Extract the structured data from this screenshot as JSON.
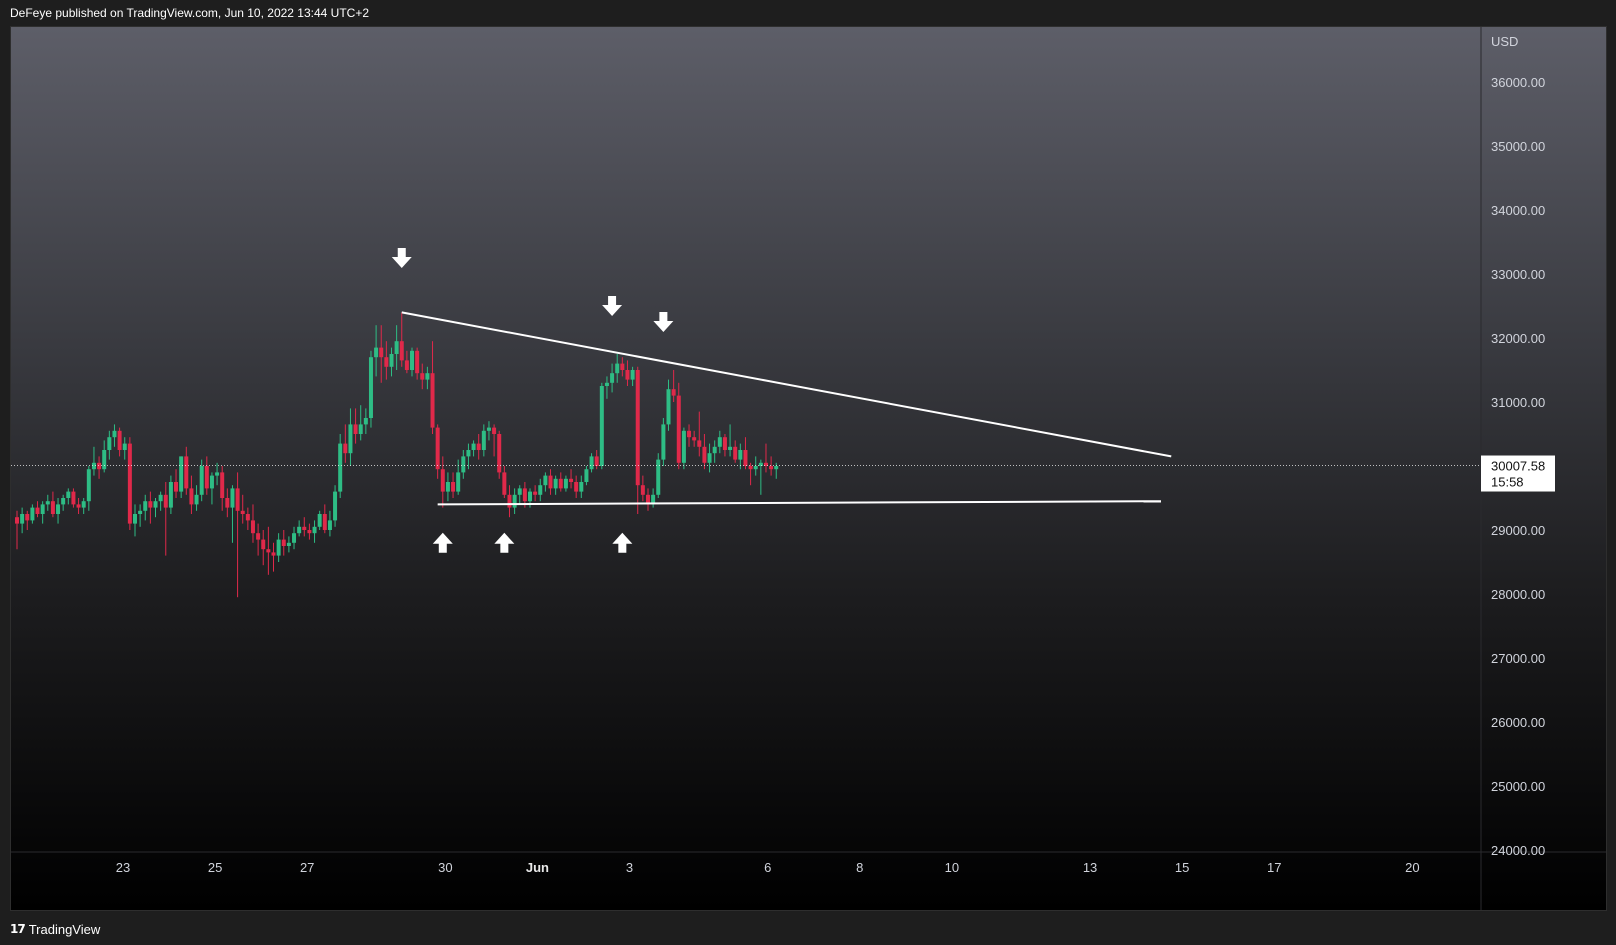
{
  "header": {
    "text": "DeFeye published on TradingView.com, Jun 10, 2022 13:44 UTC+2"
  },
  "footer": {
    "logo_glyph": "17",
    "brand": "TradingView"
  },
  "colors": {
    "up": "#26a69a",
    "down": "#ef5350",
    "up_bright": "#2ebd85",
    "down_bright": "#e0294a",
    "annotation": "#ffffff",
    "axis_text": "#d1d4dc",
    "price_line": "#ffffff"
  },
  "chart_data": {
    "type": "candlestick",
    "timeframe": "2h",
    "currency_label": "USD",
    "y_ticks": [
      "36000.00",
      "35000.00",
      "34000.00",
      "33000.00",
      "32000.00",
      "31000.00",
      "30000.00",
      "29000.00",
      "28000.00",
      "27000.00",
      "26000.00",
      "25000.00",
      "24000.00"
    ],
    "ylim": [
      24000,
      36900
    ],
    "x_ticks": [
      {
        "label": "23",
        "day_index": 0,
        "bold": false
      },
      {
        "label": "25",
        "day_index": 2,
        "bold": false
      },
      {
        "label": "27",
        "day_index": 4,
        "bold": false
      },
      {
        "label": "30",
        "day_index": 7,
        "bold": false
      },
      {
        "label": "Jun",
        "day_index": 9,
        "bold": true
      },
      {
        "label": "3",
        "day_index": 11,
        "bold": false
      },
      {
        "label": "6",
        "day_index": 14,
        "bold": false
      },
      {
        "label": "8",
        "day_index": 16,
        "bold": false
      },
      {
        "label": "10",
        "day_index": 18,
        "bold": false
      },
      {
        "label": "13",
        "day_index": 21,
        "bold": false
      },
      {
        "label": "15",
        "day_index": 23,
        "bold": false
      },
      {
        "label": "17",
        "day_index": 25,
        "bold": false
      },
      {
        "label": "20",
        "day_index": 28,
        "bold": false
      }
    ],
    "last_price": {
      "value": 30007.58,
      "label": "30007.58",
      "countdown": "15:58"
    },
    "candles": [
      [
        29200,
        29300,
        28700,
        29100
      ],
      [
        29100,
        29350,
        28950,
        29250
      ],
      [
        29250,
        29300,
        29000,
        29150
      ],
      [
        29150,
        29400,
        29100,
        29350
      ],
      [
        29350,
        29450,
        29200,
        29250
      ],
      [
        29250,
        29450,
        29100,
        29400
      ],
      [
        29400,
        29550,
        29300,
        29450
      ],
      [
        29450,
        29600,
        29200,
        29250
      ],
      [
        29250,
        29500,
        29100,
        29400
      ],
      [
        29400,
        29550,
        29300,
        29500
      ],
      [
        29500,
        29650,
        29400,
        29600
      ],
      [
        29600,
        29650,
        29350,
        29400
      ],
      [
        29400,
        29500,
        29250,
        29350
      ],
      [
        29350,
        29500,
        29250,
        29450
      ],
      [
        29450,
        30000,
        29300,
        29950
      ],
      [
        29950,
        30300,
        29850,
        30050
      ],
      [
        30050,
        30150,
        29800,
        29950
      ],
      [
        29950,
        30400,
        29900,
        30250
      ],
      [
        30250,
        30550,
        30100,
        30450
      ],
      [
        30450,
        30650,
        30300,
        30550
      ],
      [
        30550,
        30600,
        30150,
        30250
      ],
      [
        30250,
        30450,
        30100,
        30350
      ],
      [
        30350,
        30450,
        29000,
        29100
      ],
      [
        29100,
        29400,
        28900,
        29250
      ],
      [
        29250,
        29400,
        29050,
        29300
      ],
      [
        29300,
        29550,
        29150,
        29450
      ],
      [
        29450,
        29600,
        29100,
        29350
      ],
      [
        29350,
        29500,
        29200,
        29450
      ],
      [
        29450,
        29600,
        29300,
        29550
      ],
      [
        29550,
        29750,
        28600,
        29350
      ],
      [
        29350,
        29850,
        29250,
        29750
      ],
      [
        29750,
        29950,
        29500,
        29600
      ],
      [
        29600,
        30150,
        29500,
        30150
      ],
      [
        30150,
        30300,
        29550,
        29650
      ],
      [
        29650,
        29850,
        29250,
        29400
      ],
      [
        29400,
        29700,
        29300,
        29550
      ],
      [
        29550,
        30100,
        29450,
        30000
      ],
      [
        30000,
        30150,
        29550,
        29650
      ],
      [
        29650,
        29900,
        29400,
        29850
      ],
      [
        29850,
        30050,
        29700,
        29900
      ],
      [
        29900,
        30000,
        29300,
        29500
      ],
      [
        29500,
        29650,
        29200,
        29350
      ],
      [
        29350,
        29700,
        28800,
        29650
      ],
      [
        29650,
        29900,
        27950,
        29300
      ],
      [
        29300,
        29550,
        29100,
        29250
      ],
      [
        29250,
        29350,
        29000,
        29150
      ],
      [
        29150,
        29400,
        28800,
        28950
      ],
      [
        28950,
        29100,
        28600,
        28850
      ],
      [
        28850,
        29000,
        28450,
        28700
      ],
      [
        28700,
        29050,
        28300,
        28650
      ],
      [
        28650,
        28800,
        28350,
        28600
      ],
      [
        28600,
        28950,
        28500,
        28850
      ],
      [
        28850,
        29000,
        28600,
        28750
      ],
      [
        28750,
        28900,
        28650,
        28800
      ],
      [
        28800,
        29050,
        28700,
        28950
      ],
      [
        28950,
        29150,
        28900,
        29050
      ],
      [
        29050,
        29200,
        28900,
        29000
      ],
      [
        29000,
        29100,
        28850,
        28950
      ],
      [
        28950,
        29150,
        28800,
        29050
      ],
      [
        29050,
        29300,
        29000,
        29250
      ],
      [
        29250,
        29400,
        28950,
        29000
      ],
      [
        29000,
        29300,
        28900,
        29150
      ],
      [
        29150,
        29700,
        29050,
        29600
      ],
      [
        29600,
        30500,
        29500,
        30350
      ],
      [
        30350,
        30650,
        30050,
        30200
      ],
      [
        30200,
        30900,
        30000,
        30650
      ],
      [
        30650,
        30900,
        30350,
        30500
      ],
      [
        30500,
        30950,
        30400,
        30650
      ],
      [
        30650,
        30900,
        30500,
        30750
      ],
      [
        30750,
        31800,
        30600,
        31700
      ],
      [
        31700,
        32200,
        31400,
        31850
      ],
      [
        31850,
        32200,
        31300,
        31700
      ],
      [
        31700,
        31950,
        31350,
        31550
      ],
      [
        31550,
        31850,
        31400,
        31750
      ],
      [
        31750,
        32200,
        31500,
        31950
      ],
      [
        31950,
        32400,
        31550,
        31650
      ],
      [
        31650,
        31800,
        31450,
        31500
      ],
      [
        31500,
        31850,
        31400,
        31800
      ],
      [
        31800,
        31850,
        31350,
        31450
      ],
      [
        31450,
        31600,
        31200,
        31350
      ],
      [
        31350,
        31550,
        31200,
        31450
      ],
      [
        31450,
        31950,
        30500,
        30600
      ],
      [
        30600,
        30650,
        29800,
        29950
      ],
      [
        29950,
        30150,
        29350,
        29600
      ],
      [
        29600,
        29900,
        29450,
        29750
      ],
      [
        29750,
        29900,
        29500,
        29600
      ],
      [
        29600,
        30100,
        29550,
        29900
      ],
      [
        29900,
        30250,
        29800,
        30150
      ],
      [
        30150,
        30350,
        29950,
        30250
      ],
      [
        30250,
        30400,
        30150,
        30350
      ],
      [
        30350,
        30500,
        30100,
        30250
      ],
      [
        30250,
        30650,
        30150,
        30550
      ],
      [
        30550,
        30700,
        30400,
        30600
      ],
      [
        30600,
        30650,
        30150,
        30500
      ],
      [
        30500,
        30550,
        29800,
        29900
      ],
      [
        29900,
        30000,
        29500,
        29550
      ],
      [
        29550,
        29700,
        29200,
        29350
      ],
      [
        29350,
        29650,
        29250,
        29550
      ],
      [
        29550,
        29700,
        29400,
        29650
      ],
      [
        29650,
        29750,
        29350,
        29450
      ],
      [
        29450,
        29650,
        29350,
        29600
      ],
      [
        29600,
        29700,
        29450,
        29550
      ],
      [
        29550,
        29800,
        29450,
        29700
      ],
      [
        29700,
        29900,
        29600,
        29850
      ],
      [
        29850,
        29950,
        29550,
        29650
      ],
      [
        29650,
        29850,
        29550,
        29800
      ],
      [
        29800,
        29900,
        29600,
        29650
      ],
      [
        29650,
        29850,
        29600,
        29800
      ],
      [
        29800,
        29950,
        29650,
        29750
      ],
      [
        29750,
        29850,
        29500,
        29600
      ],
      [
        29600,
        29850,
        29500,
        29750
      ],
      [
        29750,
        30000,
        29700,
        29950
      ],
      [
        29950,
        30200,
        29900,
        30150
      ],
      [
        30150,
        30250,
        29950,
        30000
      ],
      [
        30000,
        31300,
        29950,
        31250
      ],
      [
        31250,
        31400,
        31050,
        31300
      ],
      [
        31300,
        31600,
        31150,
        31450
      ],
      [
        31450,
        31750,
        31300,
        31600
      ],
      [
        31600,
        31700,
        31400,
        31500
      ],
      [
        31500,
        31650,
        31250,
        31350
      ],
      [
        31350,
        31550,
        31250,
        31500
      ],
      [
        31500,
        31550,
        29250,
        29700
      ],
      [
        29700,
        29850,
        29450,
        29550
      ],
      [
        29550,
        29650,
        29300,
        29400
      ],
      [
        29400,
        29650,
        29350,
        29550
      ],
      [
        29550,
        30200,
        29500,
        30100
      ],
      [
        30100,
        30750,
        30000,
        30650
      ],
      [
        30650,
        31350,
        30550,
        31200
      ],
      [
        31200,
        31500,
        31000,
        31100
      ],
      [
        31100,
        31300,
        29950,
        30050
      ],
      [
        30050,
        30600,
        29950,
        30550
      ],
      [
        30550,
        30650,
        30300,
        30450
      ],
      [
        30450,
        30550,
        30300,
        30400
      ],
      [
        30400,
        30850,
        30150,
        30300
      ],
      [
        30300,
        30500,
        29950,
        30050
      ],
      [
        30050,
        30350,
        29900,
        30200
      ],
      [
        30200,
        30400,
        30050,
        30300
      ],
      [
        30300,
        30550,
        30200,
        30450
      ],
      [
        30450,
        30500,
        30150,
        30250
      ],
      [
        30250,
        30650,
        30150,
        30300
      ],
      [
        30300,
        30400,
        30050,
        30100
      ],
      [
        30100,
        30350,
        29950,
        30250
      ],
      [
        30250,
        30450,
        29950,
        30000
      ],
      [
        30000,
        30050,
        29700,
        29950
      ],
      [
        29950,
        30150,
        29850,
        30000
      ],
      [
        30000,
        30100,
        29550,
        30050
      ],
      [
        30050,
        30350,
        29900,
        30000
      ],
      [
        30000,
        30150,
        29850,
        29950
      ],
      [
        29950,
        30050,
        29800,
        30000
      ]
    ],
    "annotations": {
      "lines": [
        {
          "from": {
            "candle": 75,
            "price": 32400
          },
          "to": {
            "candle": 225,
            "price": 30150
          }
        },
        {
          "from": {
            "candle": 82,
            "price": 29400
          },
          "to": {
            "candle": 223,
            "price": 29450
          }
        }
      ],
      "arrows": [
        {
          "dir": "down",
          "candle": 75,
          "price": 33250
        },
        {
          "dir": "down",
          "candle": 116,
          "price": 32500
        },
        {
          "dir": "down",
          "candle": 126,
          "price": 32250
        },
        {
          "dir": "up",
          "candle": 83,
          "price": 28800
        },
        {
          "dir": "up",
          "candle": 95,
          "price": 28800
        },
        {
          "dir": "up",
          "candle": 118,
          "price": 28800
        }
      ]
    }
  }
}
